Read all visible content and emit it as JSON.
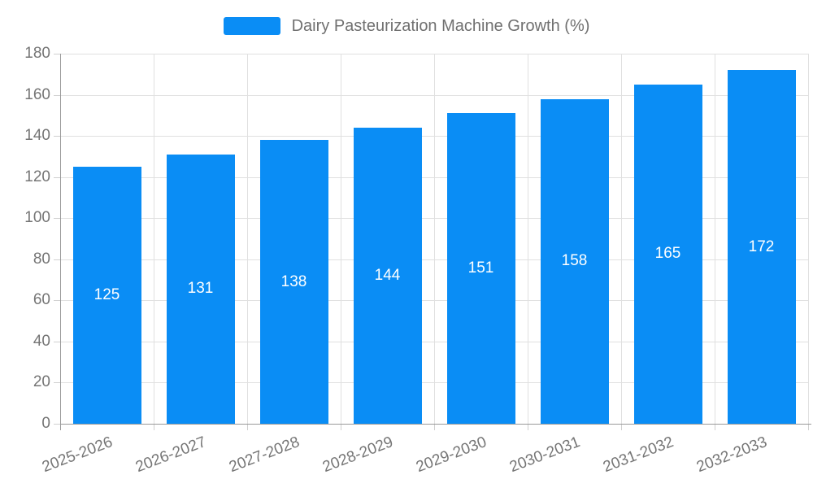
{
  "legend": {
    "label": "Dairy Pasteurization Machine Growth (%)"
  },
  "chart_data": {
    "type": "bar",
    "title": "Dairy Pasteurization Machine Growth (%)",
    "categories": [
      "2025-2026",
      "2026-2027",
      "2027-2028",
      "2028-2029",
      "2029-2030",
      "2030-2031",
      "2031-2032",
      "2032-2033"
    ],
    "values": [
      125,
      131,
      138,
      144,
      151,
      158,
      165,
      172
    ],
    "xlabel": "",
    "ylabel": "",
    "ylim": [
      0,
      180
    ],
    "ytick_step": 20,
    "ytick_labels": [
      "0",
      "20",
      "40",
      "60",
      "80",
      "100",
      "120",
      "140",
      "160",
      "180"
    ],
    "grid": "on",
    "legend_position": "top-center",
    "value_labels_position": "inside-center",
    "x_label_rotation_deg": -21,
    "colors": {
      "bar": "#0a8df5",
      "value_label": "#ffffff",
      "axis_label": "#757575",
      "legend_text": "#707070",
      "grid_line": "#e0e0e0",
      "tick": "#d0d0d0",
      "axis_line": "#9a9a9a",
      "background": "#ffffff"
    }
  }
}
